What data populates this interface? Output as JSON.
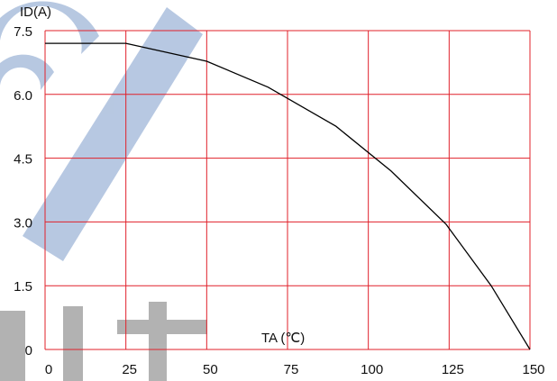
{
  "chart_data": {
    "type": "line",
    "y_label": "ID(A)",
    "x_label": "TA (℃)",
    "x": [
      0,
      25,
      50,
      69,
      90,
      107,
      124,
      138,
      150
    ],
    "series": [
      {
        "color": "#000000",
        "values": [
          7.2,
          7.2,
          6.78,
          6.17,
          5.25,
          4.2,
          2.95,
          1.5,
          0
        ]
      }
    ],
    "xlim": [
      0,
      150
    ],
    "xticks": [
      0,
      25,
      50,
      75,
      100,
      125,
      150
    ],
    "ylim": [
      0,
      7.5
    ],
    "yticks": [
      0,
      1.5,
      {
        "value": 3,
        "label": "3.0"
      },
      4.5,
      {
        "value": 6,
        "label": "6.0"
      },
      7.5
    ],
    "grid": true,
    "grid_color": "#e0202a"
  }
}
